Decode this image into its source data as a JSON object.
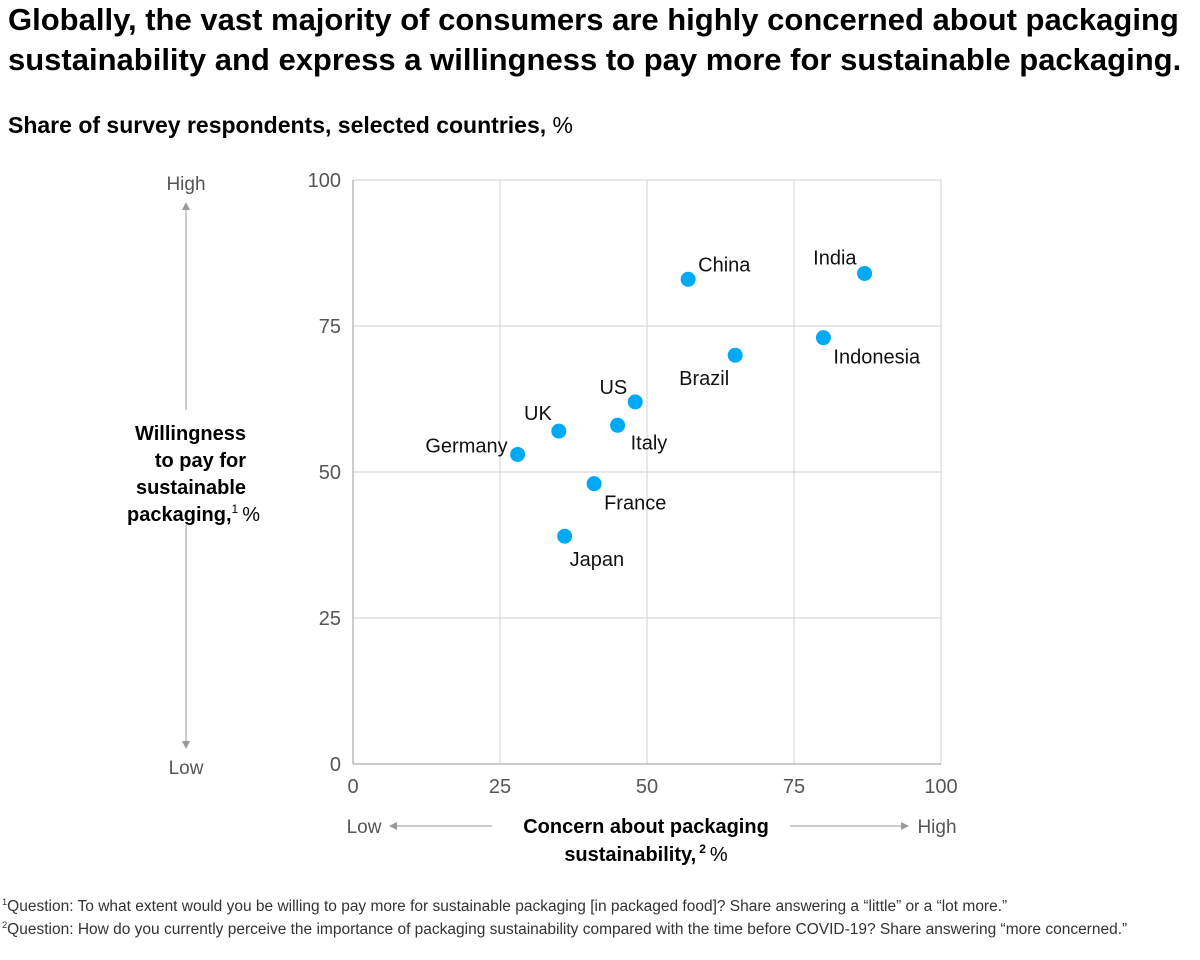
{
  "title": {
    "line1": "Globally, the vast majority of consumers are highly concerned about packaging",
    "line2": "sustainability and express a willingness to pay more for sustainable packaging."
  },
  "subtitle": {
    "text": "Share of survey respondents, selected countries,",
    "unit": "%"
  },
  "chart_data": {
    "type": "scatter",
    "xlabel": "Concern about packaging sustainability,2 %",
    "ylabel": "Willingness to pay for sustainable packaging,1 %",
    "xlim": [
      0,
      100
    ],
    "ylim": [
      0,
      100
    ],
    "xticks": [
      0,
      25,
      50,
      75,
      100
    ],
    "yticks": [
      0,
      25,
      50,
      75,
      100
    ],
    "grid": true,
    "marker_color": "#00A9F4",
    "points": [
      {
        "label": "China",
        "x": 57,
        "y": 83
      },
      {
        "label": "India",
        "x": 87,
        "y": 84
      },
      {
        "label": "Indonesia",
        "x": 80,
        "y": 73
      },
      {
        "label": "Brazil",
        "x": 65,
        "y": 70
      },
      {
        "label": "US",
        "x": 48,
        "y": 62
      },
      {
        "label": "Italy",
        "x": 45,
        "y": 58
      },
      {
        "label": "UK",
        "x": 35,
        "y": 57
      },
      {
        "label": "Germany",
        "x": 28,
        "y": 53
      },
      {
        "label": "France",
        "x": 41,
        "y": 48
      },
      {
        "label": "Japan",
        "x": 36,
        "y": 39
      }
    ]
  },
  "axes": {
    "y_high": "High",
    "y_low": "Low",
    "x_low": "Low",
    "x_high": "High",
    "y_title_lines": [
      "Willingness",
      "to pay for",
      "sustainable",
      "packaging,"
    ],
    "y_title_sup": "1",
    "y_title_unit": "%",
    "x_title_line1": "Concern about packaging",
    "x_title_line2": "sustainability,",
    "x_title_sup": "2",
    "x_title_unit": "%"
  },
  "footnotes": {
    "fn1_marker": "1",
    "fn1": "Question: To what extent would you be willing to pay more for sustainable packaging [in packaged food]? Share answering a “little” or a “lot more.”",
    "fn2_marker": "2",
    "fn2": "Question: How do you currently perceive the importance of packaging sustainability compared with the time before COVID-19? Share answering “more concerned.”"
  }
}
